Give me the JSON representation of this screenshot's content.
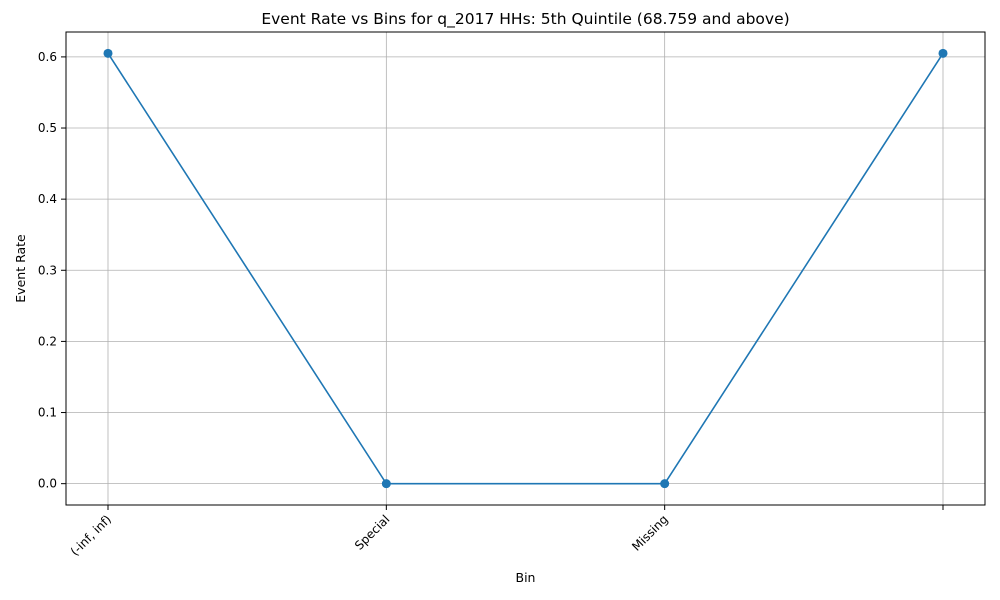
{
  "chart_data": {
    "type": "line",
    "title": "Event Rate vs Bins for q_2017 HHs: 5th Quintile (68.759 and above)",
    "xlabel": "Bin",
    "ylabel": "Event Rate",
    "categories": [
      "(-inf, inf)",
      "Special",
      "Missing",
      ""
    ],
    "values": [
      0.605,
      0.0,
      0.0,
      0.605
    ],
    "yticks": [
      0.0,
      0.1,
      0.2,
      0.3,
      0.4,
      0.5,
      0.6
    ],
    "ytick_labels": [
      "0.0",
      "0.1",
      "0.2",
      "0.3",
      "0.4",
      "0.5",
      "0.6"
    ],
    "ylim": [
      -0.03,
      0.635
    ],
    "grid": true,
    "line_color": "#1f77b4",
    "marker": "circle"
  }
}
